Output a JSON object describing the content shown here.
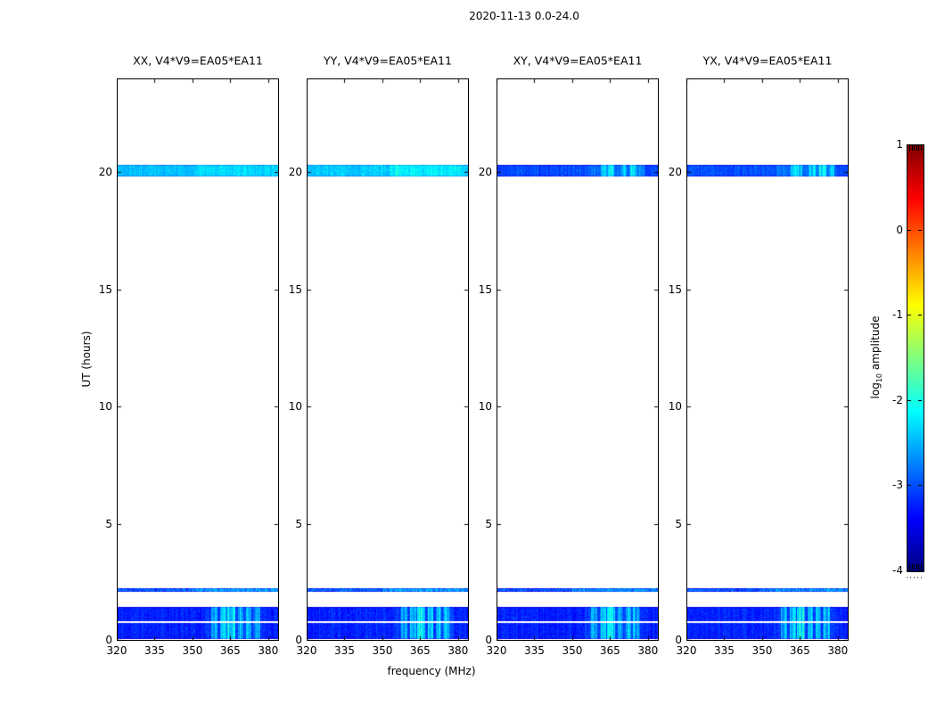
{
  "chart_data": {
    "type": "heatmap",
    "title": "2020-11-13 0.0-24.0",
    "xlabel": "frequency (MHz)",
    "ylabel": "UT (hours)",
    "x_ticks_mhz": [
      320,
      335,
      350,
      365,
      380
    ],
    "y_ticks_hours": [
      0,
      5,
      10,
      15,
      20
    ],
    "x_range_mhz": [
      320,
      384.3
    ],
    "y_range_hours": [
      0,
      24
    ],
    "grid": false,
    "colorbar": {
      "label": "log10 amplitude",
      "ticks": [
        1,
        0,
        -1,
        -2,
        -3,
        -4
      ],
      "range_log10": [
        -4,
        1
      ],
      "colormap": "jet",
      "position": "right"
    },
    "panels": [
      {
        "name": "XX",
        "title": "XX, V4*V9=EA05*EA11",
        "seed": 101,
        "bands": [
          {
            "ut_hours": [
              19.8,
              20.32
            ],
            "base_log10_amp": -2.42,
            "noise_sigma": 0.13,
            "freq_boosts": [
              {
                "mhz": [
                  352,
                  384.3
                ],
                "amp": 0.12
              }
            ]
          },
          {
            "ut_hours": [
              2.08,
              2.26
            ],
            "base_log10_amp": -2.9,
            "noise_sigma": 0.32,
            "freq_boosts": [
              {
                "mhz": [
                  350,
                  384.3
                ],
                "amp": 0.3
              }
            ]
          },
          {
            "ut_hours": [
              0.07,
              1.43
            ],
            "base_log10_amp": -3.22,
            "noise_sigma": 0.15,
            "white_gap_ut": [
              0.76,
              0.83
            ],
            "freq_boosts": [
              {
                "mhz": [
                  355,
                  378.5
                ],
                "amp": 0.12
              },
              {
                "mhz": [
                  357.3,
                  359.9
                ],
                "amp": 0.5
              },
              {
                "mhz": [
                  360.9,
                  363.3
                ],
                "amp": 0.65
              },
              {
                "mhz": [
                  363.7,
                  367.0
                ],
                "amp": 0.85
              },
              {
                "mhz": [
                  367.9,
                  370.1
                ],
                "amp": 0.6
              },
              {
                "mhz": [
                  371.2,
                  373.4
                ],
                "amp": 0.7
              },
              {
                "mhz": [
                  374.2,
                  376.9
                ],
                "amp": 0.55
              }
            ]
          }
        ]
      },
      {
        "name": "YY",
        "title": "YY, V4*V9=EA05*EA11",
        "seed": 202,
        "bands": [
          {
            "ut_hours": [
              19.8,
              20.32
            ],
            "base_log10_amp": -2.38,
            "noise_sigma": 0.16,
            "freq_boosts": [
              {
                "mhz": [
                  353,
                  381
                ],
                "amp": 0.2
              }
            ]
          },
          {
            "ut_hours": [
              2.08,
              2.26
            ],
            "base_log10_amp": -2.9,
            "noise_sigma": 0.32,
            "freq_boosts": [
              {
                "mhz": [
                  350,
                  384.3
                ],
                "amp": 0.3
              }
            ]
          },
          {
            "ut_hours": [
              0.07,
              1.43
            ],
            "base_log10_amp": -3.22,
            "noise_sigma": 0.15,
            "white_gap_ut": [
              0.76,
              0.83
            ],
            "freq_boosts": [
              {
                "mhz": [
                  355,
                  378.5
                ],
                "amp": 0.12
              },
              {
                "mhz": [
                  357.3,
                  359.9
                ],
                "amp": 0.5
              },
              {
                "mhz": [
                  360.9,
                  363.3
                ],
                "amp": 0.65
              },
              {
                "mhz": [
                  363.7,
                  367.0
                ],
                "amp": 0.85
              },
              {
                "mhz": [
                  367.9,
                  370.1
                ],
                "amp": 0.6
              },
              {
                "mhz": [
                  371.2,
                  373.4
                ],
                "amp": 0.7
              },
              {
                "mhz": [
                  374.2,
                  376.9
                ],
                "amp": 0.55
              }
            ]
          }
        ]
      },
      {
        "name": "XY",
        "title": "XY, V4*V9=EA05*EA11",
        "seed": 303,
        "bands": [
          {
            "ut_hours": [
              19.8,
              20.32
            ],
            "base_log10_amp": -3.02,
            "noise_sigma": 0.12,
            "freq_boosts": [
              {
                "mhz": [
                  356,
                  378.5
                ],
                "amp": 0.18
              },
              {
                "mhz": [
                  361.5,
                  366.5
                ],
                "amp": 0.5
              },
              {
                "mhz": [
                  369,
                  371.5
                ],
                "amp": 0.45
              },
              {
                "mhz": [
                  372.5,
                  375.5
                ],
                "amp": 0.55
              },
              {
                "mhz": [
                  376.5,
                  378.5
                ],
                "amp": 0.35
              }
            ]
          },
          {
            "ut_hours": [
              2.08,
              2.26
            ],
            "base_log10_amp": -2.95,
            "noise_sigma": 0.32,
            "freq_boosts": [
              {
                "mhz": [
                  350,
                  384.3
                ],
                "amp": 0.28
              }
            ]
          },
          {
            "ut_hours": [
              0.07,
              1.43
            ],
            "base_log10_amp": -3.22,
            "noise_sigma": 0.15,
            "white_gap_ut": [
              0.76,
              0.83
            ],
            "freq_boosts": [
              {
                "mhz": [
                  355,
                  378.5
                ],
                "amp": 0.12
              },
              {
                "mhz": [
                  357.3,
                  359.9
                ],
                "amp": 0.5
              },
              {
                "mhz": [
                  360.9,
                  363.3
                ],
                "amp": 0.65
              },
              {
                "mhz": [
                  363.7,
                  367.0
                ],
                "amp": 0.85
              },
              {
                "mhz": [
                  367.9,
                  370.1
                ],
                "amp": 0.6
              },
              {
                "mhz": [
                  371.2,
                  373.4
                ],
                "amp": 0.7
              },
              {
                "mhz": [
                  374.2,
                  376.9
                ],
                "amp": 0.55
              }
            ]
          }
        ]
      },
      {
        "name": "YX",
        "title": "YX, V4*V9=EA05*EA11",
        "seed": 404,
        "bands": [
          {
            "ut_hours": [
              19.8,
              20.32
            ],
            "base_log10_amp": -3.0,
            "noise_sigma": 0.12,
            "freq_boosts": [
              {
                "mhz": [
                  356,
                  378.5
                ],
                "amp": 0.18
              },
              {
                "mhz": [
                  361.5,
                  366
                ],
                "amp": 0.48
              },
              {
                "mhz": [
                  368.5,
                  371.5
                ],
                "amp": 0.5
              },
              {
                "mhz": [
                  372.5,
                  375.5
                ],
                "amp": 0.55
              },
              {
                "mhz": [
                  376.5,
                  378.5
                ],
                "amp": 0.35
              }
            ]
          },
          {
            "ut_hours": [
              2.08,
              2.26
            ],
            "base_log10_amp": -2.95,
            "noise_sigma": 0.32,
            "freq_boosts": [
              {
                "mhz": [
                  350,
                  384.3
                ],
                "amp": 0.28
              }
            ]
          },
          {
            "ut_hours": [
              0.07,
              1.43
            ],
            "base_log10_amp": -3.22,
            "noise_sigma": 0.15,
            "white_gap_ut": [
              0.76,
              0.83
            ],
            "freq_boosts": [
              {
                "mhz": [
                  355,
                  378.5
                ],
                "amp": 0.12
              },
              {
                "mhz": [
                  357.3,
                  359.9
                ],
                "amp": 0.5
              },
              {
                "mhz": [
                  360.9,
                  363.3
                ],
                "amp": 0.65
              },
              {
                "mhz": [
                  363.7,
                  367.0
                ],
                "amp": 0.85
              },
              {
                "mhz": [
                  367.9,
                  370.1
                ],
                "amp": 0.6
              },
              {
                "mhz": [
                  371.2,
                  373.4
                ],
                "amp": 0.7
              },
              {
                "mhz": [
                  374.2,
                  376.9
                ],
                "amp": 0.55
              }
            ]
          }
        ]
      }
    ]
  }
}
